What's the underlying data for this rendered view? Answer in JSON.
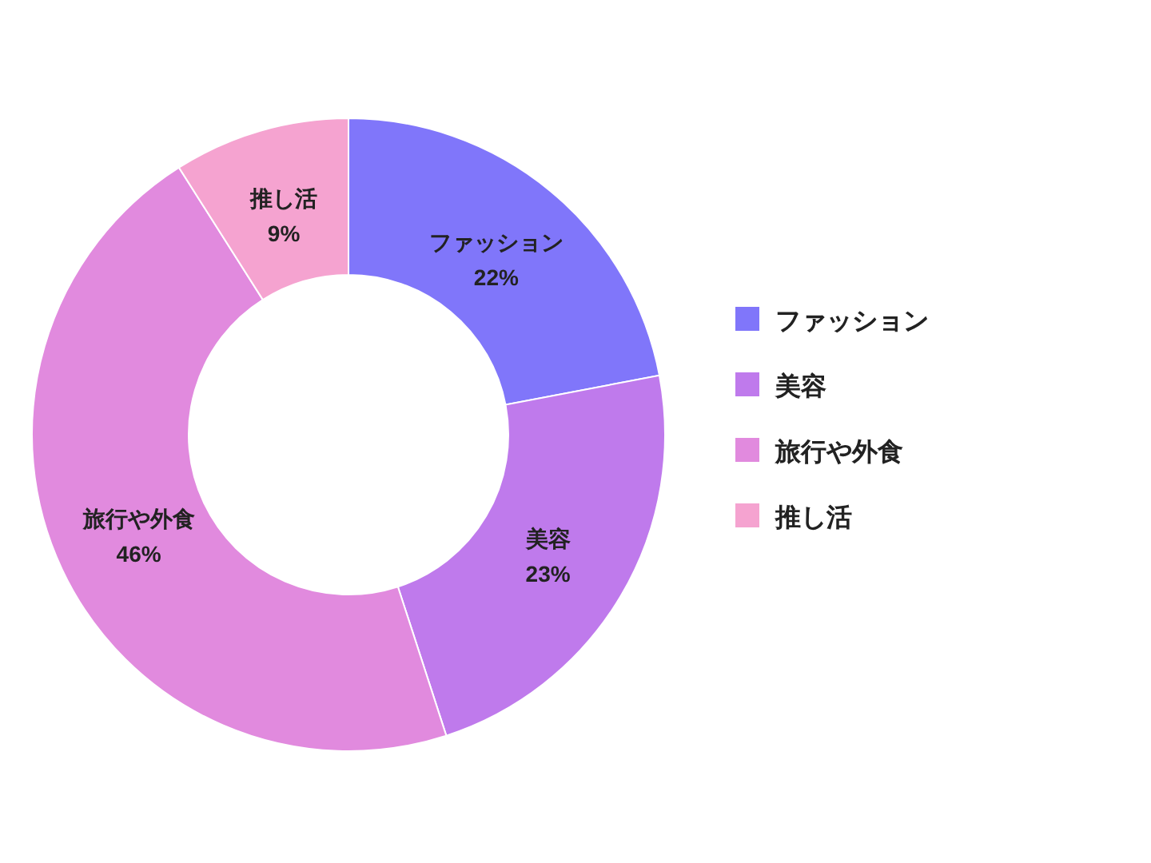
{
  "chart_data": {
    "type": "donut",
    "categories": [
      "ファッション",
      "美容",
      "旅行や外食",
      "推し活"
    ],
    "values": [
      22,
      23,
      46,
      9
    ],
    "colors": [
      "#8076fa",
      "#bf7aec",
      "#e18ade",
      "#f5a3d0"
    ],
    "value_labels": [
      "22%",
      "23%",
      "46%",
      "9%"
    ],
    "legend": "right"
  }
}
